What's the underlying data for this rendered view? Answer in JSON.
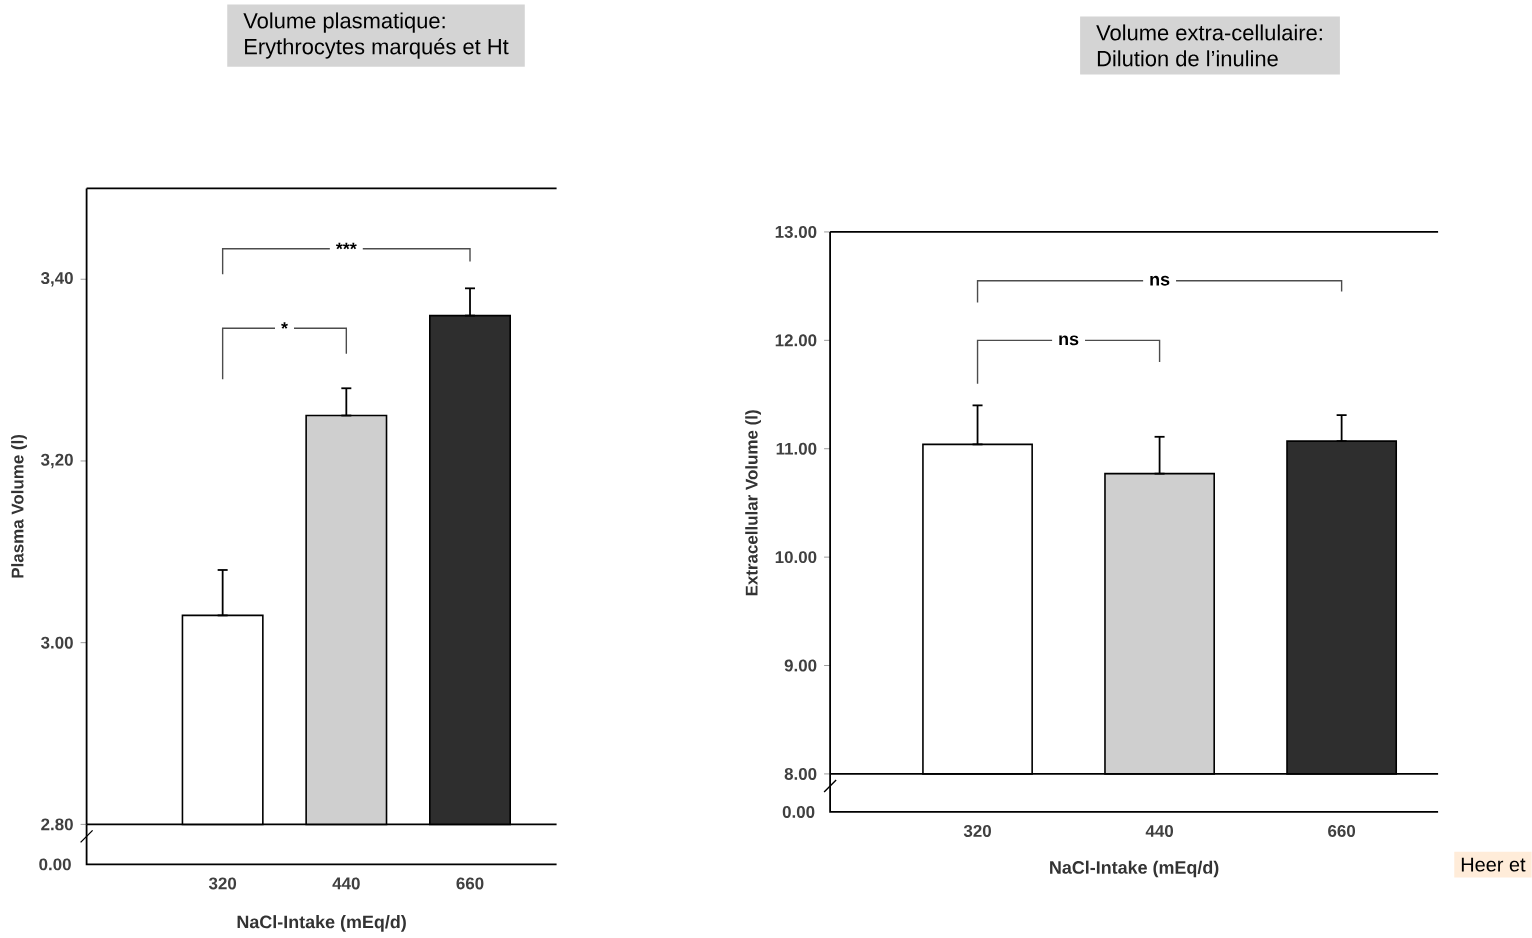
{
  "chart_data": [
    {
      "type": "bar",
      "title": "Volume plasmatique:",
      "subtitle": "Erythrocytes marqués et Ht",
      "xlabel": "NaCl-Intake (mEq/d)",
      "ylabel": "Plasma Volume (l)",
      "categories": [
        "320",
        "440",
        "660"
      ],
      "values": [
        3.03,
        3.25,
        3.36
      ],
      "colors": [
        "#ffffff",
        "#cfcfcf",
        "#2e2e2e"
      ],
      "errors": [
        [
          3.03,
          3.08
        ],
        [
          3.25,
          3.28
        ],
        [
          3.36,
          3.39
        ]
      ],
      "ylim": [
        2.8,
        3.5
      ],
      "yticks": [
        {
          "value": 2.8,
          "label": "2.80"
        },
        {
          "value": 3.0,
          "label": "3.00"
        },
        {
          "value": 3.2,
          "label": "3,20"
        },
        {
          "value": 3.4,
          "label": "3,40"
        }
      ],
      "annotations": [
        "*",
        "***",
        "0.00"
      ]
    },
    {
      "type": "bar",
      "title": "Volume extra-cellulaire:",
      "subtitle": "Dilution de l’inuline",
      "xlabel": "NaCl-Intake (mEq/d)",
      "ylabel": "Extracellular Volume (l)",
      "categories": [
        "320",
        "440",
        "660"
      ],
      "values": [
        11.04,
        10.77,
        11.07
      ],
      "colors": [
        "#ffffff",
        "#cfcfcf",
        "#2e2e2e"
      ],
      "errors": [
        [
          11.04,
          11.4
        ],
        [
          10.77,
          11.11
        ],
        [
          11.07,
          11.31
        ]
      ],
      "ylim": [
        8,
        13
      ],
      "yticks": [
        {
          "value": 8,
          "label": "8.00"
        },
        {
          "value": 9,
          "label": "9.00"
        },
        {
          "value": 10,
          "label": "10.00"
        },
        {
          "value": 11,
          "label": "11.00"
        },
        {
          "value": 12,
          "label": "12.00"
        },
        {
          "value": 13,
          "label": "13.00"
        }
      ],
      "annotations": [
        "ns",
        "ns",
        "0.00",
        "Heer et"
      ]
    }
  ]
}
